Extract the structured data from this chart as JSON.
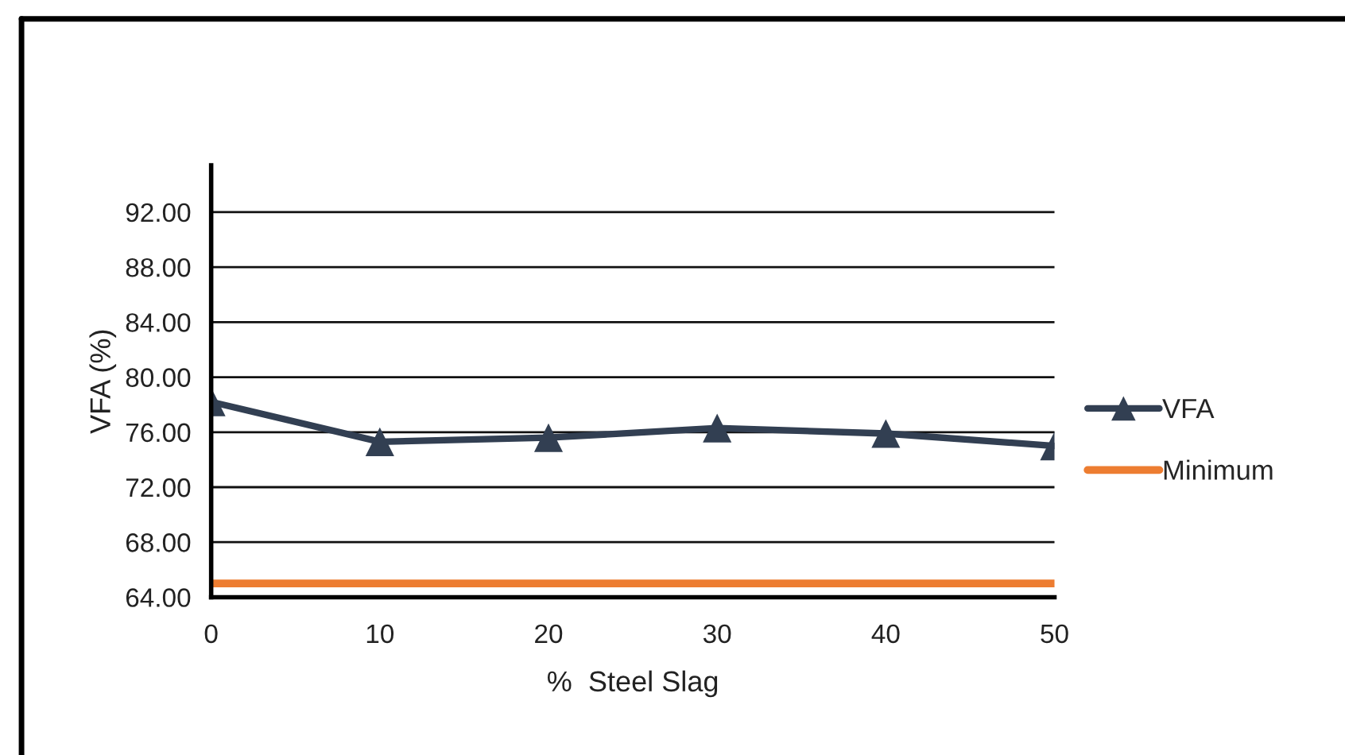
{
  "chart_data": {
    "type": "line",
    "xlabel": "%  Steel Slag",
    "ylabel": "VFA (%)",
    "categories": [
      "0",
      "10",
      "20",
      "30",
      "40",
      "50"
    ],
    "series": [
      {
        "name": "VFA",
        "color": "#323f52",
        "marker": "triangle",
        "values": [
          78.2,
          75.3,
          75.6,
          76.3,
          75.9,
          75.0
        ]
      },
      {
        "name": "Minimum",
        "color": "#ed7d31",
        "marker": "none",
        "values": [
          65,
          65,
          65,
          65,
          65,
          65
        ]
      }
    ],
    "ylim": [
      64,
      95.4
    ],
    "yticks": [
      {
        "value": 64,
        "label": "64.00"
      },
      {
        "value": 68,
        "label": "68.00"
      },
      {
        "value": 72,
        "label": "72.00"
      },
      {
        "value": 76,
        "label": "76.00"
      },
      {
        "value": 80,
        "label": "80.00"
      },
      {
        "value": 84,
        "label": "84.00"
      },
      {
        "value": 88,
        "label": "88.00"
      },
      {
        "value": 92,
        "label": "92.00"
      }
    ],
    "grid": "y",
    "legend": "right",
    "line_style": "solid"
  }
}
